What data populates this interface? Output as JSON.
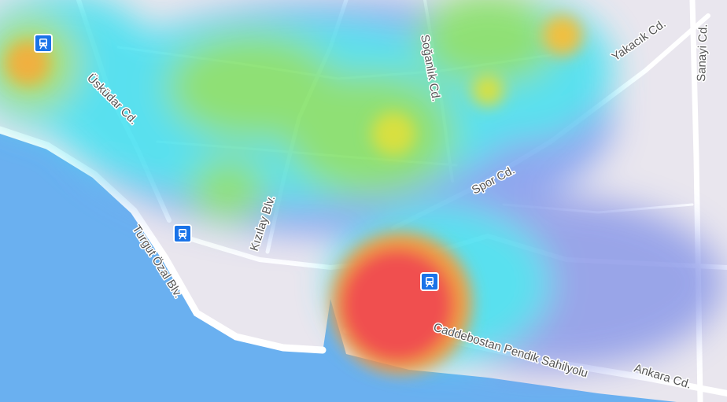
{
  "map": {
    "streets": [
      {
        "name": "Üsküdar Cd."
      },
      {
        "name": "Turgut Özal Blv."
      },
      {
        "name": "Kızılay Blv."
      },
      {
        "name": "Soğanlık Cd."
      },
      {
        "name": "Yakacık Cd."
      },
      {
        "name": "Sanayi Cd."
      },
      {
        "name": "Spor Cd."
      },
      {
        "name": "Caddebostan Pendik Sahilyolu"
      },
      {
        "name": "Ankara Cd."
      }
    ],
    "transit_icon": "train-station-icon",
    "layer": "heatmap",
    "colors": {
      "sea": "#6ab0f0",
      "land": "#e9e6ee",
      "road": "#ffffff",
      "heat_high": "#f05050",
      "heat_mid": "#e8e040",
      "heat_low": "#40e0f0",
      "transit": "#1a73e8"
    }
  }
}
